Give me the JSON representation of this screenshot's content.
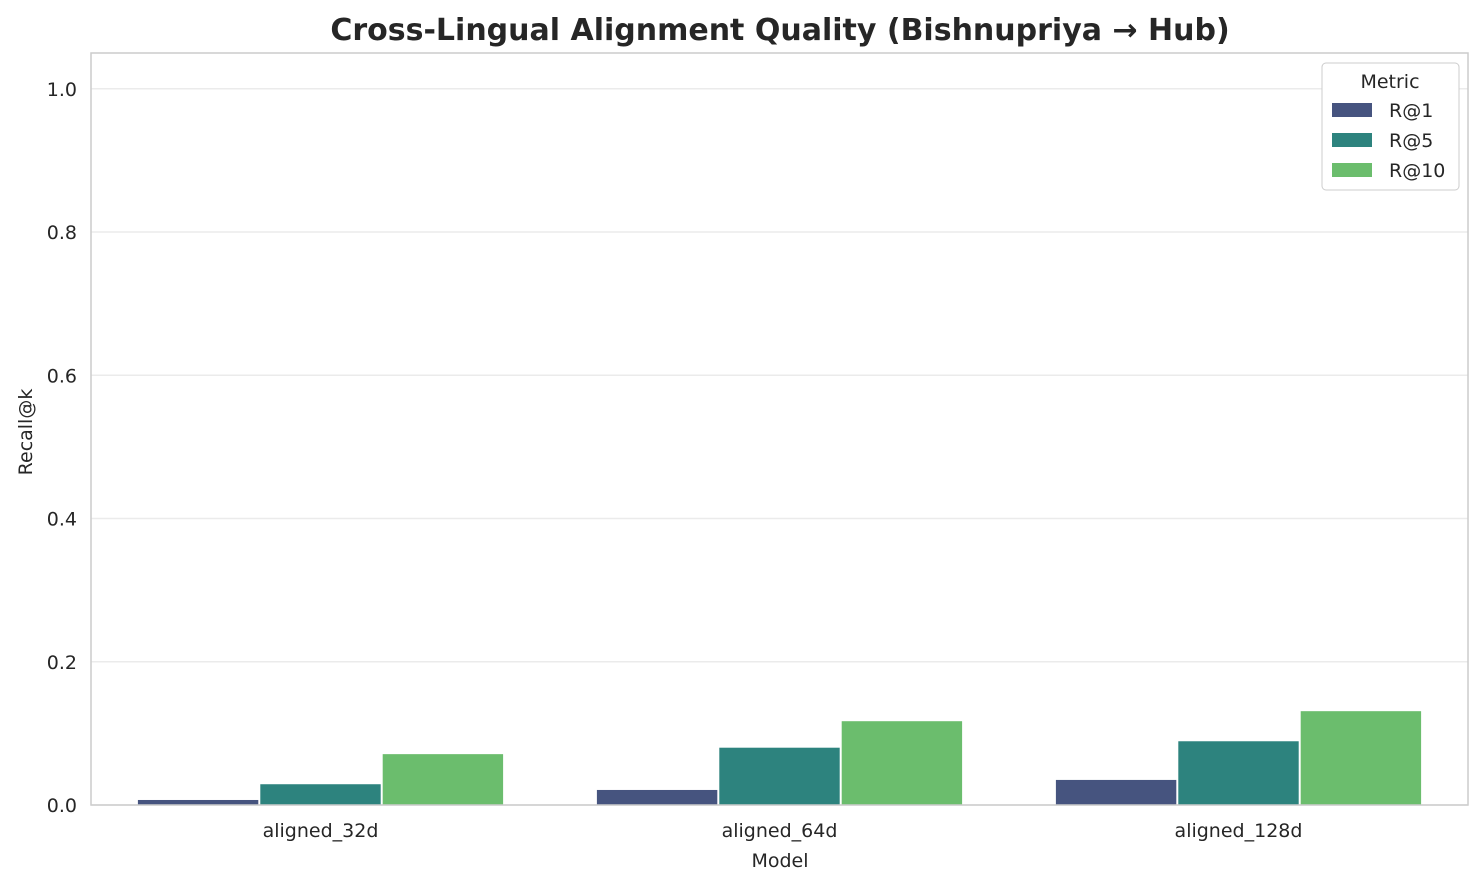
{
  "chart_data": {
    "type": "bar",
    "title": "Cross-Lingual Alignment Quality (Bishnupriya → Hub)",
    "xlabel": "Model",
    "ylabel": "Recall@k",
    "categories": [
      "aligned_32d",
      "aligned_64d",
      "aligned_128d"
    ],
    "ylim": [
      0,
      1.05
    ],
    "yticks": [
      "0.0",
      "0.2",
      "0.4",
      "0.6",
      "0.8",
      "1.0"
    ],
    "grid": true,
    "legend": {
      "title": "Metric",
      "placement": "top-right"
    },
    "series": [
      {
        "name": "R@1",
        "color": "#46547f",
        "values": [
          0.007,
          0.021,
          0.035
        ]
      },
      {
        "name": "R@5",
        "color": "#2d837e",
        "values": [
          0.029,
          0.08,
          0.089
        ]
      },
      {
        "name": "R@10",
        "color": "#6bbd6d",
        "values": [
          0.071,
          0.117,
          0.131
        ]
      }
    ]
  }
}
